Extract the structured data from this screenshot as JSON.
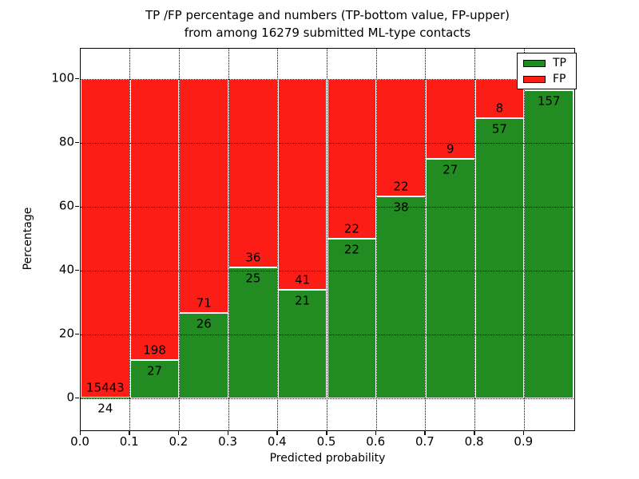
{
  "figure": {
    "title_line1": "TP /FP percentage and numbers (TP-bottom value, FP-upper)",
    "title_line2": "from among 16279 submitted ML-type contacts",
    "total_contacts": "16279"
  },
  "chart_data": {
    "type": "bar",
    "subtype": "stacked-percentage",
    "title": "TP /FP percentage and numbers (TP-bottom value, FP-upper) from among 16279 submitted ML-type contacts",
    "xlabel": "Predicted probability",
    "ylabel": "Percentage",
    "xlim": [
      0.0,
      1.0
    ],
    "ylim": [
      -10.5,
      109.5
    ],
    "grid": "dotted black on both axes",
    "legend_position": "upper right",
    "x_ticks": [
      "0.0",
      "0.1",
      "0.2",
      "0.3",
      "0.4",
      "0.5",
      "0.6",
      "0.7",
      "0.8",
      "0.9"
    ],
    "y_ticks": [
      0,
      20,
      40,
      60,
      80,
      100
    ],
    "series": [
      {
        "name": "TP",
        "color": "#228b22"
      },
      {
        "name": "FP",
        "color": "#fc1d16"
      }
    ],
    "bars": [
      {
        "bin": "0.0-0.1",
        "tp": 24,
        "fp": 15443,
        "tp_pct": 0.16
      },
      {
        "bin": "0.1-0.2",
        "tp": 27,
        "fp": 198,
        "tp_pct": 12.0
      },
      {
        "bin": "0.2-0.3",
        "tp": 26,
        "fp": 71,
        "tp_pct": 26.8
      },
      {
        "bin": "0.3-0.4",
        "tp": 25,
        "fp": 36,
        "tp_pct": 41.0
      },
      {
        "bin": "0.4-0.5",
        "tp": 21,
        "fp": 41,
        "tp_pct": 33.9
      },
      {
        "bin": "0.5-0.6",
        "tp": 22,
        "fp": 22,
        "tp_pct": 50.0
      },
      {
        "bin": "0.6-0.7",
        "tp": 38,
        "fp": 22,
        "tp_pct": 63.3
      },
      {
        "bin": "0.7-0.8",
        "tp": 27,
        "fp": 9,
        "tp_pct": 75.0
      },
      {
        "bin": "0.8-0.9",
        "tp": 57,
        "fp": 8,
        "tp_pct": 87.7
      },
      {
        "bin": "0.9-1.0",
        "tp": 157,
        "fp": null,
        "tp_pct": 96.6
      }
    ]
  }
}
